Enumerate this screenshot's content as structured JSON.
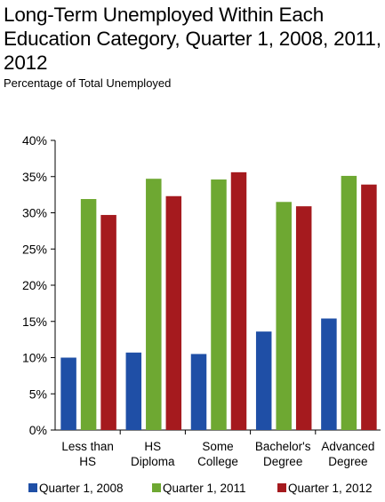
{
  "chart_data": {
    "type": "bar",
    "title": "Long-Term Unemployed Within Each Education Category, Quarter 1, 2008, 2011, 2012",
    "subtitle": "Percentage of Total Unemployed",
    "categories": [
      [
        "Less than",
        "HS"
      ],
      [
        "HS",
        "Diploma"
      ],
      [
        "Some",
        "College"
      ],
      [
        "Bachelor's",
        "Degree"
      ],
      [
        "Advanced",
        "Degree"
      ]
    ],
    "series": [
      {
        "name": "Quarter 1, 2008",
        "color": "#1f4fa6",
        "values": [
          10.0,
          10.7,
          10.5,
          13.6,
          15.4
        ]
      },
      {
        "name": "Quarter 1, 2011",
        "color": "#6ea832",
        "values": [
          31.9,
          34.7,
          34.6,
          31.5,
          35.1
        ]
      },
      {
        "name": "Quarter 1, 2012",
        "color": "#a51a1e",
        "values": [
          29.7,
          32.3,
          35.6,
          30.9,
          33.9
        ]
      }
    ],
    "ylim": [
      0,
      40
    ],
    "yticks": [
      0,
      5,
      10,
      15,
      20,
      25,
      30,
      35,
      40
    ],
    "ytick_format": "percent",
    "grid": false,
    "legend_position": "bottom"
  }
}
